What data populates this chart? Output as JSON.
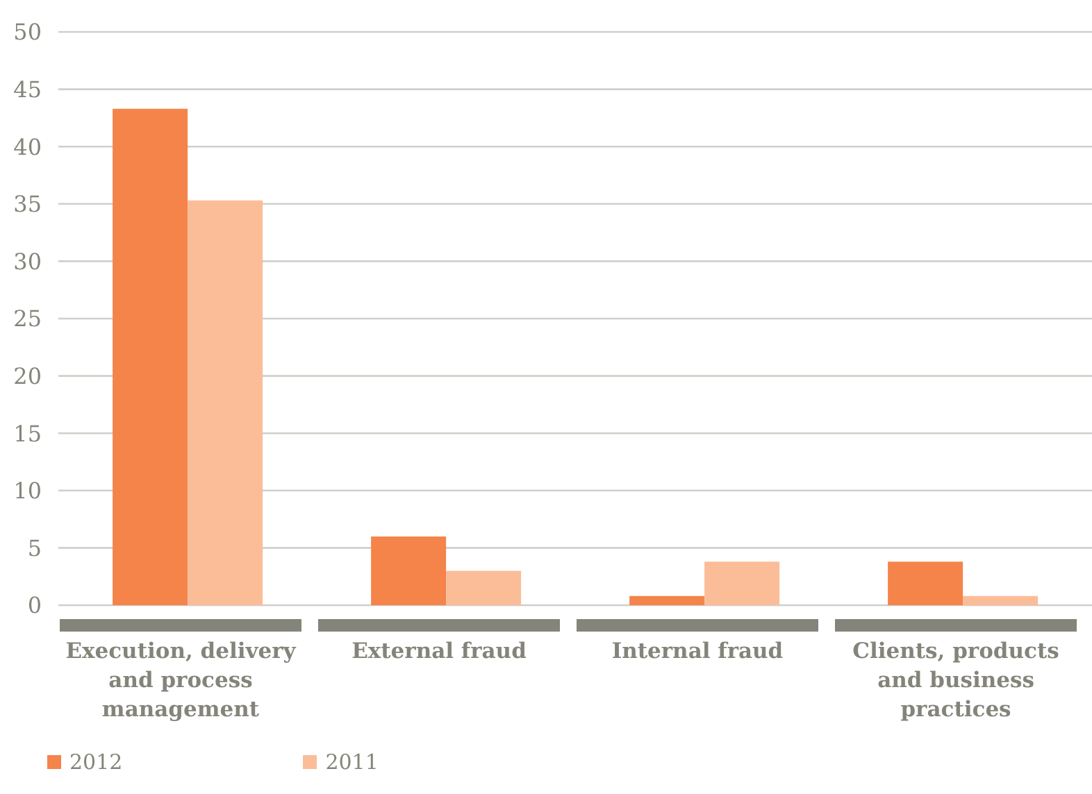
{
  "chart_data": {
    "type": "bar",
    "categories": [
      "Execution, delivery and process management",
      "External fraud",
      "Internal fraud",
      "Clients, products and business practices"
    ],
    "series": [
      {
        "name": "2012",
        "color": "#f4844a",
        "values": [
          43.3,
          6.0,
          0.8,
          3.8
        ]
      },
      {
        "name": "2011",
        "color": "#fbbd98",
        "values": [
          35.3,
          3.0,
          3.8,
          0.8
        ]
      }
    ],
    "ylim": [
      0,
      50
    ],
    "yticks": [
      0,
      5,
      10,
      15,
      20,
      25,
      30,
      35,
      40,
      45,
      50
    ],
    "grid": "y",
    "legend": "bottom left"
  }
}
